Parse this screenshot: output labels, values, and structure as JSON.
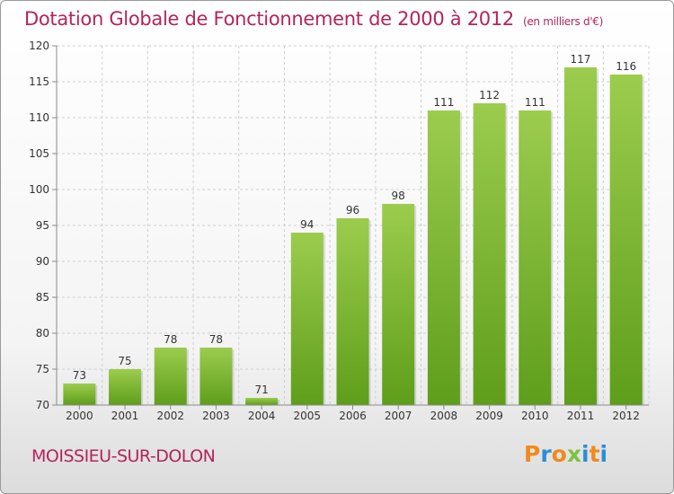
{
  "header": {
    "title": "Dotation Globale de Fonctionnement de 2000 à 2012",
    "subtitle": "(en milliers d'€)"
  },
  "footer": {
    "commune": "MOISSIEU-SUR-DOLON",
    "logo": "Proxiti"
  },
  "colors": {
    "title": "#b4245c",
    "bar_top": "#9ccc4e",
    "bar_bottom": "#5e9e1a",
    "grid": "#cfcfcf",
    "axis": "#8a8a8a",
    "logo_letters": [
      "#f08a1c",
      "#2c8fd6",
      "#f08a1c",
      "#7cc242",
      "#2c8fd6",
      "#f08a1c",
      "#2c8fd6"
    ]
  },
  "chart_data": {
    "type": "bar",
    "categories": [
      "2000",
      "2001",
      "2002",
      "2003",
      "2004",
      "2005",
      "2006",
      "2007",
      "2008",
      "2009",
      "2010",
      "2011",
      "2012"
    ],
    "values": [
      73,
      75,
      78,
      78,
      71,
      94,
      96,
      98,
      111,
      112,
      111,
      117,
      116
    ],
    "data_labels": [
      "73",
      "75",
      "78",
      "78",
      "71",
      "94",
      "96",
      "98",
      "111",
      "112",
      "111",
      "117",
      "116"
    ],
    "ylim": [
      70,
      120
    ],
    "yticks": [
      70,
      75,
      80,
      85,
      90,
      95,
      100,
      105,
      110,
      115,
      120
    ],
    "grid": true,
    "xlabel": "",
    "ylabel": ""
  }
}
